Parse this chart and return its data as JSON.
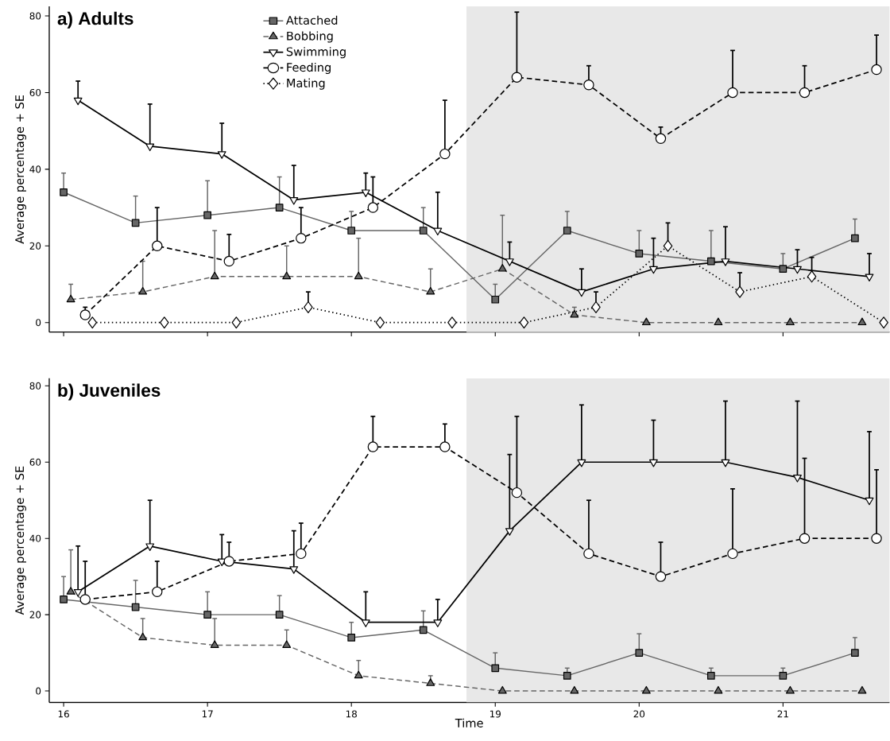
{
  "chart_data": [
    {
      "type": "line",
      "title": "a) Adults",
      "ylabel": "Average percentage + SE",
      "xlim": [
        15.9,
        21.74
      ],
      "xticks": [
        16,
        17,
        18,
        19,
        20,
        21
      ],
      "ylim": [
        -2.5,
        82.5
      ],
      "yticks": [
        0,
        20,
        40,
        60,
        80
      ],
      "tick_labels": "y",
      "legend": "top left",
      "bands": [
        {
          "axis": "x",
          "from": 18.8,
          "to": 21.74,
          "color": "#e8e8e8"
        }
      ],
      "series": [
        {
          "name": "Attached",
          "color": "#666666",
          "marker": "square",
          "line_style": "solid",
          "x": [
            16,
            16.5,
            17,
            17.5,
            18,
            18.5,
            19,
            19.5,
            20,
            20.5,
            21,
            21.5
          ],
          "values": [
            34,
            26,
            28,
            30,
            24,
            24,
            6,
            24,
            18,
            16,
            14,
            22
          ],
          "errors": [
            [
              34,
              39
            ],
            [
              26,
              33
            ],
            [
              28,
              37
            ],
            [
              30,
              38
            ],
            [
              24,
              29
            ],
            [
              24,
              30
            ],
            [
              6,
              10
            ],
            [
              24,
              29
            ],
            [
              18,
              24
            ],
            [
              16,
              24
            ],
            [
              14,
              18
            ],
            [
              22,
              27
            ]
          ]
        },
        {
          "name": "Bobbing",
          "color": "#666666",
          "marker": "triangle",
          "line_style": "dashed",
          "x": [
            16.05,
            16.55,
            17.05,
            17.55,
            18.05,
            18.55,
            19.05,
            19.55,
            20.05,
            20.55,
            21.05,
            21.55
          ],
          "values": [
            6,
            8,
            12,
            12,
            12,
            8,
            14,
            2,
            0,
            0,
            0,
            0
          ],
          "errors": [
            [
              6,
              10
            ],
            [
              8,
              16
            ],
            [
              12,
              24
            ],
            [
              12,
              20
            ],
            [
              12,
              22
            ],
            [
              8,
              14
            ],
            [
              14,
              28
            ],
            [
              2,
              4
            ],
            null,
            null,
            null,
            null
          ]
        },
        {
          "name": "Swimming",
          "color": "#000000",
          "marker": "triangle_down",
          "line_style": "solid",
          "x": [
            16.1,
            16.6,
            17.1,
            17.6,
            18.1,
            18.6,
            19.1,
            19.6,
            20.1,
            20.6,
            21.1,
            21.6
          ],
          "values": [
            58,
            46,
            44,
            32,
            34,
            24,
            16,
            8,
            14,
            16,
            14,
            12
          ],
          "errors": [
            [
              58,
              63
            ],
            [
              46,
              57
            ],
            [
              44,
              52
            ],
            [
              32,
              41
            ],
            [
              34,
              39
            ],
            [
              24,
              34
            ],
            [
              16,
              21
            ],
            [
              8,
              14
            ],
            [
              14,
              22
            ],
            [
              16,
              25
            ],
            [
              14,
              19
            ],
            [
              12,
              18
            ]
          ]
        },
        {
          "name": "Feeding",
          "color": "#000000",
          "marker": "circle",
          "line_style": "dashed",
          "x": [
            16.15,
            16.65,
            17.15,
            17.65,
            18.15,
            18.65,
            19.15,
            19.65,
            20.15,
            20.65,
            21.15,
            21.65
          ],
          "values": [
            2,
            20,
            16,
            22,
            30,
            44,
            64,
            62,
            48,
            60,
            60,
            66
          ],
          "errors": [
            [
              2,
              4
            ],
            [
              20,
              30
            ],
            [
              16,
              23
            ],
            [
              22,
              30
            ],
            [
              30,
              38
            ],
            [
              44,
              58
            ],
            [
              64,
              81
            ],
            [
              62,
              67
            ],
            [
              48,
              51
            ],
            [
              60,
              71
            ],
            [
              60,
              67
            ],
            [
              66,
              75
            ]
          ]
        },
        {
          "name": "Mating",
          "color": "#000000",
          "marker": "diamond",
          "line_style": "dotted",
          "x": [
            16.2,
            16.7,
            17.2,
            17.7,
            18.2,
            18.7,
            19.2,
            19.7,
            20.2,
            20.7,
            21.2,
            21.7
          ],
          "values": [
            0,
            0,
            0,
            4,
            0,
            0,
            0,
            4,
            20,
            8,
            12,
            0
          ],
          "errors": [
            null,
            null,
            null,
            [
              4,
              8
            ],
            null,
            null,
            null,
            [
              4,
              8
            ],
            [
              20,
              26
            ],
            [
              8,
              13
            ],
            [
              12,
              17
            ],
            null
          ]
        }
      ]
    },
    {
      "type": "line",
      "title": "b) Juveniles",
      "xlabel": "Time",
      "ylabel": "Average percentage + SE",
      "xlim": [
        15.9,
        21.74
      ],
      "xticks": [
        16,
        17,
        18,
        19,
        20,
        21
      ],
      "ylim": [
        -3,
        82
      ],
      "yticks": [
        0,
        20,
        40,
        60,
        80
      ],
      "bands": [
        {
          "axis": "x",
          "from": 18.8,
          "to": 21.74,
          "color": "#e8e8e8"
        }
      ],
      "series": [
        {
          "color": "#666666",
          "marker": "square",
          "line_style": "solid",
          "x": [
            16,
            16.5,
            17,
            17.5,
            18,
            18.5,
            19,
            19.5,
            20,
            20.5,
            21,
            21.5
          ],
          "values": [
            24,
            22,
            20,
            20,
            14,
            16,
            6,
            4,
            10,
            4,
            4,
            10
          ],
          "errors": [
            [
              24,
              30
            ],
            [
              22,
              29
            ],
            [
              20,
              26
            ],
            [
              20,
              25
            ],
            [
              14,
              18
            ],
            [
              16,
              21
            ],
            [
              6,
              10
            ],
            [
              4,
              6
            ],
            [
              10,
              15
            ],
            [
              4,
              6
            ],
            [
              4,
              6
            ],
            [
              10,
              14
            ]
          ]
        },
        {
          "color": "#666666",
          "marker": "triangle",
          "line_style": "dashed",
          "x": [
            16.05,
            16.55,
            17.05,
            17.55,
            18.05,
            18.55,
            19.05,
            19.55,
            20.05,
            20.55,
            21.05,
            21.55
          ],
          "values": [
            26,
            14,
            12,
            12,
            4,
            2,
            0,
            0,
            0,
            0,
            0,
            0
          ],
          "errors": [
            [
              26,
              37
            ],
            [
              14,
              19
            ],
            [
              12,
              19
            ],
            [
              12,
              16
            ],
            [
              4,
              8
            ],
            [
              2,
              4
            ],
            null,
            null,
            null,
            null,
            null,
            null
          ]
        },
        {
          "color": "#000000",
          "marker": "triangle_down",
          "line_style": "solid",
          "x": [
            16.1,
            16.6,
            17.1,
            17.6,
            18.1,
            18.6,
            19.1,
            19.6,
            20.1,
            20.6,
            21.1,
            21.6
          ],
          "values": [
            26,
            38,
            34,
            32,
            18,
            18,
            42,
            60,
            60,
            60,
            56,
            50
          ],
          "errors": [
            [
              26,
              38
            ],
            [
              38,
              50
            ],
            [
              34,
              41
            ],
            [
              32,
              42
            ],
            [
              18,
              26
            ],
            [
              18,
              24
            ],
            [
              42,
              62
            ],
            [
              60,
              75
            ],
            [
              60,
              71
            ],
            [
              60,
              76
            ],
            [
              56,
              76
            ],
            [
              50,
              68
            ]
          ]
        },
        {
          "color": "#000000",
          "marker": "circle",
          "line_style": "dashed",
          "x": [
            16.15,
            16.65,
            17.15,
            17.65,
            18.15,
            18.65,
            19.15,
            19.65,
            20.15,
            20.65,
            21.15,
            21.65
          ],
          "values": [
            24,
            26,
            34,
            36,
            64,
            64,
            52,
            36,
            30,
            36,
            40,
            40
          ],
          "errors": [
            [
              24,
              34
            ],
            [
              26,
              34
            ],
            [
              34,
              39
            ],
            [
              36,
              44
            ],
            [
              64,
              72
            ],
            [
              64,
              70
            ],
            [
              52,
              72
            ],
            [
              36,
              50
            ],
            [
              30,
              39
            ],
            [
              36,
              53
            ],
            [
              40,
              61
            ],
            [
              40,
              58
            ]
          ]
        }
      ]
    }
  ]
}
